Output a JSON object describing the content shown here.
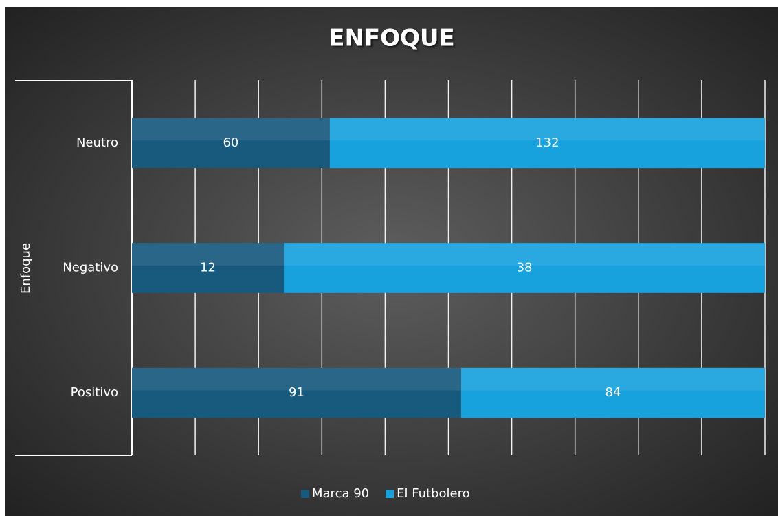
{
  "chart_data": {
    "type": "stacked_bar_percent",
    "orientation": "horizontal",
    "title": "ENFOQUE",
    "y_label": "Enfoque",
    "categories": [
      "Neutro",
      "Negativo",
      "Positivo"
    ],
    "series": [
      {
        "name": "Marca 90",
        "color": "#185a7d",
        "values": [
          60,
          12,
          91
        ]
      },
      {
        "name": "El Futbolero",
        "color": "#17a2de",
        "values": [
          132,
          38,
          84
        ]
      }
    ],
    "xlim": [
      0,
      100
    ],
    "xticks": [
      0,
      10,
      20,
      30,
      40,
      50,
      60,
      70,
      80,
      90,
      100
    ],
    "show_tick_labels": false,
    "grid": true,
    "legend": "bottom"
  }
}
